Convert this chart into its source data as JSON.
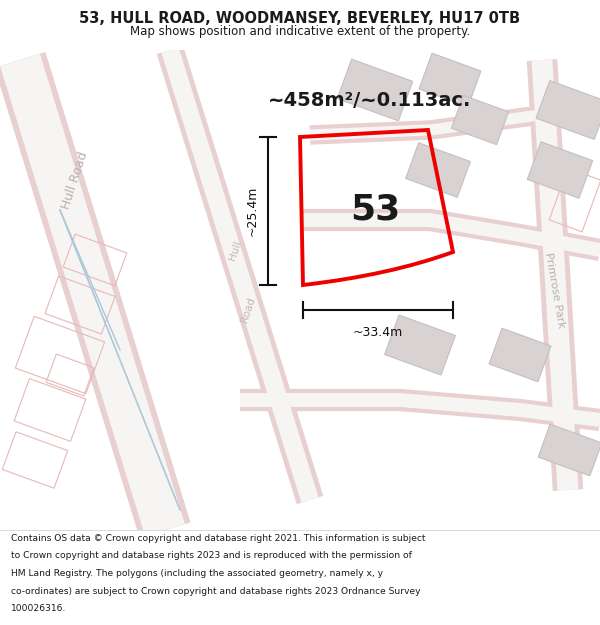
{
  "title_line1": "53, HULL ROAD, WOODMANSEY, BEVERLEY, HU17 0TB",
  "title_line2": "Map shows position and indicative extent of the property.",
  "area_label": "~458m²/~0.113ac.",
  "plot_number": "53",
  "dim_height": "~25.4m",
  "dim_width": "~33.4m",
  "footer_lines": [
    "Contains OS data © Crown copyright and database right 2021. This information is subject",
    "to Crown copyright and database rights 2023 and is reproduced with the permission of",
    "HM Land Registry. The polygons (including the associated geometry, namely x, y",
    "co-ordinates) are subject to Crown copyright and database rights 2023 Ordnance Survey",
    "100026316."
  ],
  "bg_color": "#ffffff",
  "map_bg": "#f7f4f4",
  "road_outer_color": "#e8d0d0",
  "road_inner_color": "#f7f4f4",
  "road_line_color": "#e0c0c0",
  "plot_outline_color": "#ee0000",
  "building_fill": "#d8d2d2",
  "building_edge": "#c5bfbf",
  "text_color": "#1a1a1a",
  "dim_color": "#111111",
  "road_label_color": "#c0b8b8",
  "hullroad_label_color": "#b8b0b0",
  "primrose_label_color": "#b8b0b0",
  "blue_line_color": "#aac8d8",
  "map_border_color": "#cccccc"
}
